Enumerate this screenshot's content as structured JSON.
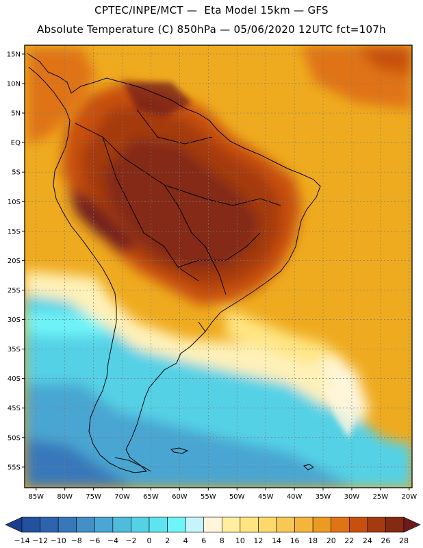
{
  "header": {
    "line1": "CPTEC/INPE/MCT —  Eta Model 15km — GFS",
    "line2": "Absolute Temperature (C) 850hPa — 05/06/2020 12UTC fct=107h"
  },
  "map": {
    "region": "South America",
    "variable": "Absolute Temperature (C)",
    "level": "850hPa",
    "lat_labels": [
      "15N",
      "10N",
      "5N",
      "EQ",
      "5S",
      "10S",
      "15S",
      "20S",
      "25S",
      "30S",
      "35S",
      "40S",
      "45S",
      "50S",
      "55S"
    ],
    "lat_values": [
      15,
      10,
      5,
      0,
      -5,
      -10,
      -15,
      -20,
      -25,
      -30,
      -35,
      -40,
      -45,
      -50,
      -55
    ],
    "lon_labels": [
      "85W",
      "80W",
      "75W",
      "70W",
      "65W",
      "60W",
      "55W",
      "50W",
      "45W",
      "40W",
      "35W",
      "30W",
      "25W",
      "20W"
    ],
    "lon_values": [
      -85,
      -80,
      -75,
      -70,
      -65,
      -60,
      -55,
      -50,
      -45,
      -40,
      -35,
      -30,
      -25,
      -20
    ]
  },
  "colorbar": {
    "labels": [
      "-14",
      "-12",
      "-10",
      "-8",
      "-6",
      "-4",
      "-2",
      "0",
      "2",
      "4",
      "6",
      "8",
      "10",
      "12",
      "14",
      "16",
      "18",
      "20",
      "22",
      "24",
      "26",
      "28"
    ],
    "colors": [
      "#1c3f8c",
      "#24519e",
      "#2d64ad",
      "#3878ba",
      "#4290c6",
      "#4aa6d2",
      "#4fbcdc",
      "#55d1e6",
      "#5fe3ef",
      "#6ff4f8",
      "#c7f3fb",
      "#fff6dc",
      "#ffeea0",
      "#ffe582",
      "#fcd96a",
      "#f7c854",
      "#f3b53c",
      "#eb9a24",
      "#df7315",
      "#c8500f",
      "#a53a10",
      "#842a12",
      "#6e1a1d"
    ]
  }
}
